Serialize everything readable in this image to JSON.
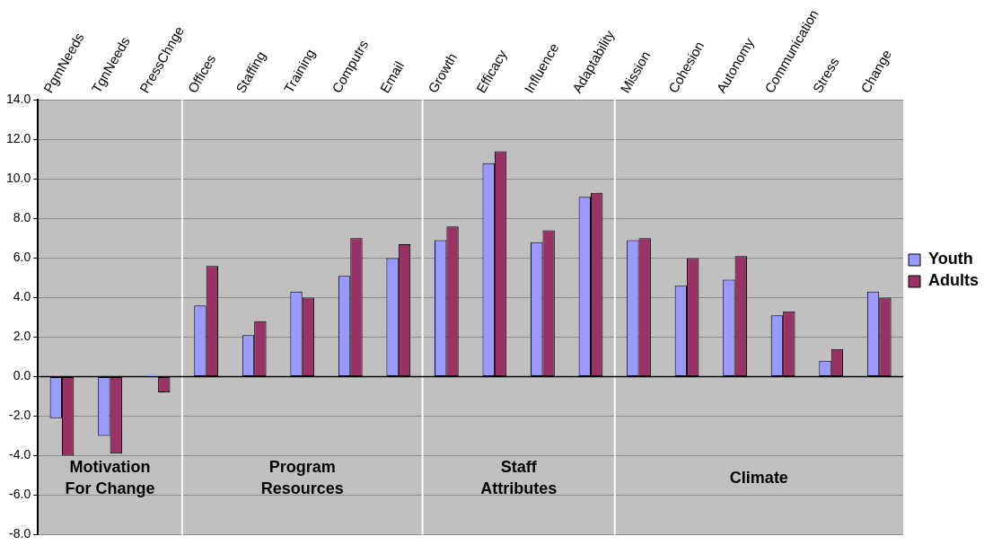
{
  "chart_data": {
    "type": "bar",
    "categories": [
      "PgmNeeds",
      "TgnNeeds",
      "PressChnge",
      "Offices",
      "Staffing",
      "Training",
      "Computrs",
      "Email",
      "Growth",
      "Efficacy",
      "Influence",
      "Adaptability",
      "Mission",
      "Cohesion",
      "Autonomy",
      "Communication",
      "Stress",
      "Change"
    ],
    "series": [
      {
        "name": "Youth",
        "color": "#9999ff",
        "values": [
          -2.1,
          -3.0,
          0.1,
          3.6,
          2.1,
          4.3,
          5.1,
          6.0,
          6.9,
          10.8,
          6.8,
          9.1,
          6.9,
          4.6,
          4.9,
          3.1,
          0.8,
          4.3
        ]
      },
      {
        "name": "Adults",
        "color": "#993366",
        "values": [
          -4.0,
          -3.9,
          -0.8,
          5.6,
          2.8,
          4.0,
          7.0,
          6.7,
          7.6,
          11.4,
          7.4,
          9.3,
          7.0,
          6.0,
          6.1,
          3.3,
          1.4,
          4.0
        ]
      }
    ],
    "ylim": [
      -8,
      14
    ],
    "yticks": [
      {
        "value": -8,
        "label": "-8.0"
      },
      {
        "value": -6,
        "label": "-6.0"
      },
      {
        "value": -4,
        "label": "-4.0"
      },
      {
        "value": -2,
        "label": "-2.0"
      },
      {
        "value": 0,
        "label": "0.0"
      },
      {
        "value": 2,
        "label": "2.0"
      },
      {
        "value": 4,
        "label": "4.0"
      },
      {
        "value": 6,
        "label": "6.0"
      },
      {
        "value": 8,
        "label": "8.0"
      },
      {
        "value": 10,
        "label": "10.0"
      },
      {
        "value": 12,
        "label": "12.0"
      },
      {
        "value": 14,
        "label": "14.0"
      }
    ],
    "bands": [
      {
        "axis": "x",
        "from": "PgmNeeds",
        "to": "PressChnge",
        "label": "Motivation\nFor Change",
        "color": "#c0c0c0"
      },
      {
        "axis": "x",
        "from": "Offices",
        "to": "Email",
        "label": "Program\nResources",
        "color": "#c0c0c0"
      },
      {
        "axis": "x",
        "from": "Growth",
        "to": "Adaptability",
        "label": "Staff\nAttributes",
        "color": "#c0c0c0"
      },
      {
        "axis": "x",
        "from": "Mission",
        "to": "Change",
        "label": "Climate",
        "color": "#c0c0c0"
      }
    ],
    "grid": "y",
    "legend": "right"
  }
}
